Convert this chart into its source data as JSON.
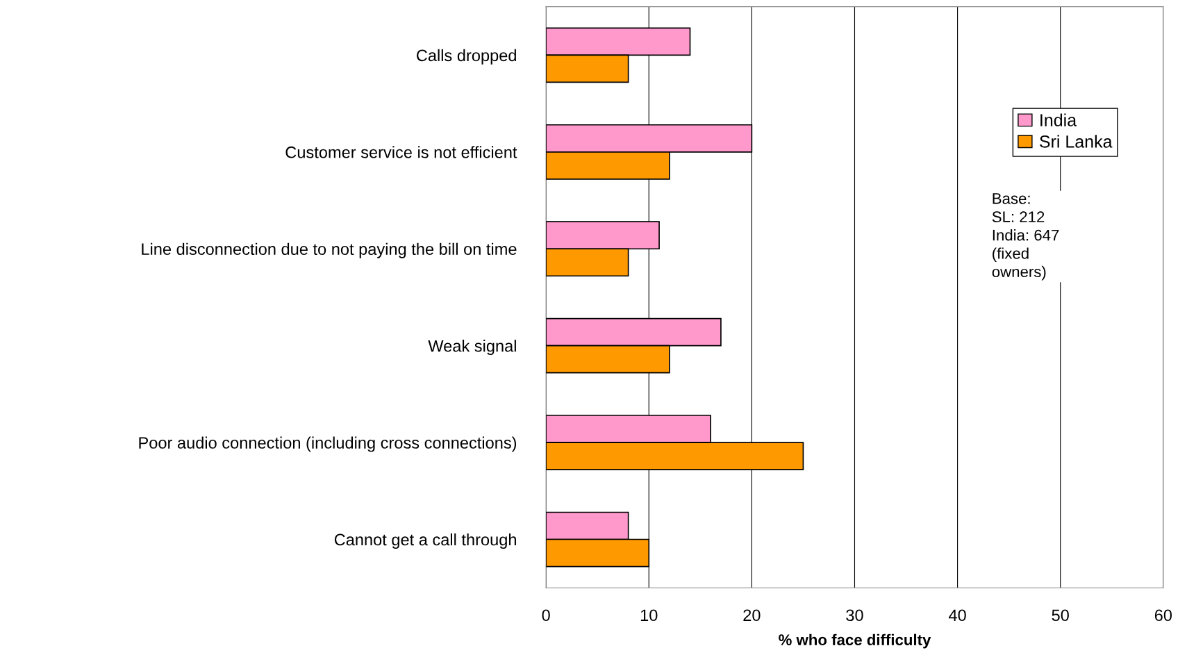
{
  "chart_data": {
    "type": "bar",
    "orientation": "horizontal",
    "xlabel": "% who face difficulty",
    "categories": [
      "Calls dropped",
      "Customer service is not efficient",
      "Line disconnection due to not paying the bill on time",
      "Weak signal",
      "Poor audio connection (including cross connections)",
      "Cannot get a call through"
    ],
    "series": [
      {
        "name": "India",
        "color": "#ff99cc",
        "values": [
          14,
          20,
          11,
          17,
          16,
          8
        ]
      },
      {
        "name": "Sri Lanka",
        "color": "#ff9900",
        "values": [
          8,
          12,
          8,
          12,
          25,
          10
        ]
      }
    ],
    "xlim": [
      0,
      60
    ],
    "xticks": [
      0,
      10,
      20,
      30,
      40,
      50,
      60
    ],
    "grid": "x",
    "legend": "top right",
    "annotations": [
      "Base:\nSL: 212\nIndia: 647\n(fixed\nowners)"
    ]
  }
}
